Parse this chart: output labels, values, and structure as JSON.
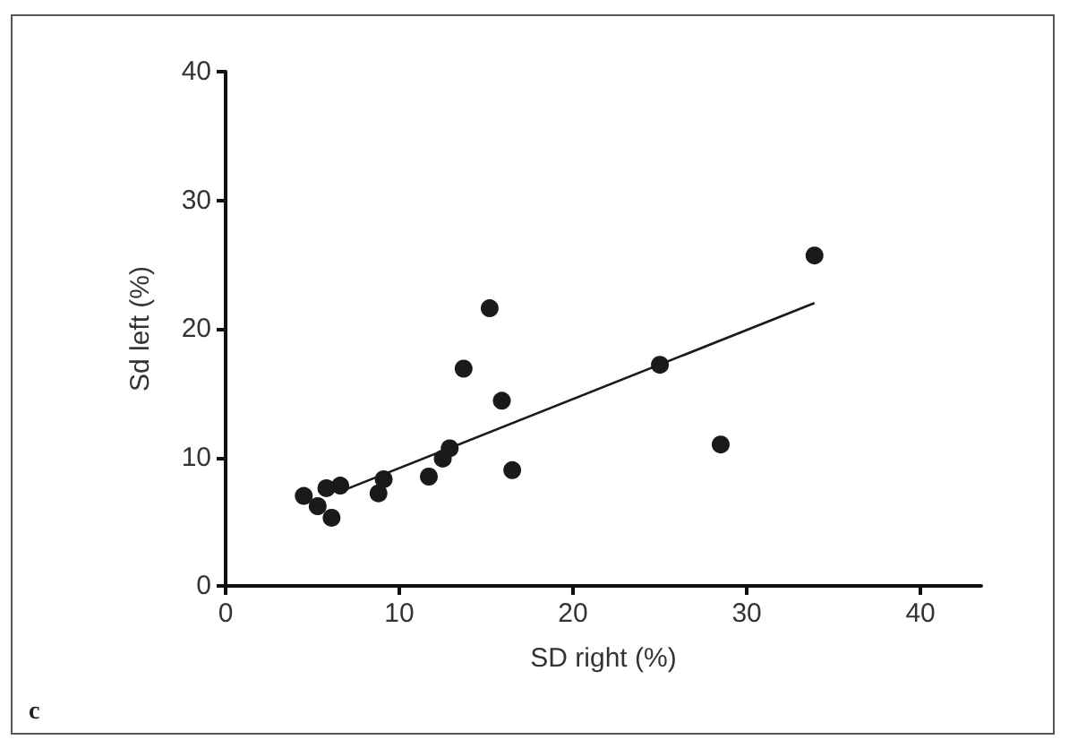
{
  "chart_data": {
    "type": "scatter",
    "xlabel": "SD right (%)",
    "ylabel": "Sd left (%)",
    "annotations": [
      "c"
    ],
    "xlim": [
      0,
      43.5
    ],
    "xticks": [
      0,
      10,
      20,
      30,
      40
    ],
    "ylim": [
      0,
      40
    ],
    "yticks": [
      0,
      10,
      20,
      30,
      40
    ],
    "grid": false,
    "marker": "circle",
    "series": [
      {
        "color": "#1a1a1a",
        "x": [
          4.5,
          5.3,
          5.8,
          6.1,
          6.6,
          8.8,
          9.1,
          11.7,
          12.5,
          12.9,
          13.7,
          15.2,
          15.9,
          16.5,
          25.0,
          28.5,
          33.9
        ],
        "values": [
          7.0,
          6.2,
          7.6,
          5.3,
          7.8,
          7.2,
          8.3,
          8.5,
          9.9,
          10.7,
          16.9,
          21.6,
          14.4,
          9.0,
          17.2,
          11.0,
          25.7
        ]
      },
      {
        "type": "line",
        "color": "#1a1a1a",
        "x": [
          6.9,
          33.9
        ],
        "values": [
          7.5,
          22.0
        ],
        "marker": "none",
        "line_style": "solid"
      }
    ]
  }
}
